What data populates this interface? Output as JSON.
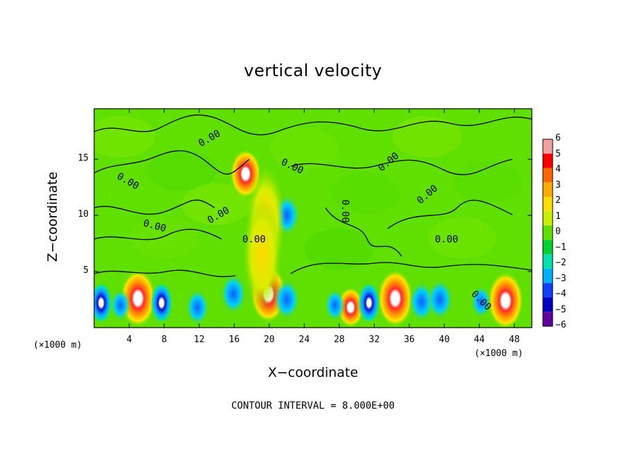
{
  "chart_data": {
    "type": "heatmap",
    "title": "vertical velocity",
    "xlabel": "X−coordinate",
    "ylabel": "Z−coordinate",
    "x_unit": "(×1000 m)",
    "y_unit": "(×1000 m)",
    "xlim": [
      0,
      50
    ],
    "ylim": [
      0,
      19.5
    ],
    "x_ticks": [
      4,
      8,
      12,
      16,
      20,
      24,
      28,
      32,
      36,
      40,
      44,
      48
    ],
    "y_ticks": [
      5,
      10,
      15
    ],
    "colorbar": {
      "ticks": [
        "6",
        "5",
        "4",
        "3",
        "2",
        "1",
        "0",
        "−1",
        "−2",
        "−3",
        "−4",
        "−5",
        "−6"
      ],
      "colors": [
        "#f4a0a0",
        "#ff0000",
        "#ff6600",
        "#ffaa00",
        "#ffdd00",
        "#c8f000",
        "#60e000",
        "#00d030",
        "#00e0b0",
        "#00b0ff",
        "#1040ff",
        "#0000c0",
        "#6000a0"
      ]
    },
    "contour_labels": [
      "0.00",
      "0.00",
      "0.00",
      "0.00",
      "0.00",
      "0.00",
      "0.00",
      "0.00",
      "0.00",
      "0.00",
      "0.00"
    ],
    "contour_interval": "CONTOUR INTERVAL = 8.000E+00",
    "features": [
      {
        "kind": "updraft",
        "x": 5.0,
        "z": 2.6,
        "w": 6
      },
      {
        "kind": "updraft",
        "x": 19.9,
        "z": 3.0,
        "w": 6
      },
      {
        "kind": "updraft",
        "x": 34.4,
        "z": 2.6,
        "w": 6
      },
      {
        "kind": "updraft",
        "x": 47.0,
        "z": 2.4,
        "w": 6
      },
      {
        "kind": "updraft",
        "x": 17.3,
        "z": 13.7,
        "w": 5
      },
      {
        "kind": "updraft",
        "x": 29.3,
        "z": 1.8,
        "w": 4
      },
      {
        "kind": "downdraft",
        "x": 0.8,
        "z": 2.2,
        "w": -6
      },
      {
        "kind": "downdraft",
        "x": 7.7,
        "z": 2.2,
        "w": -5
      },
      {
        "kind": "downdraft",
        "x": 31.4,
        "z": 2.2,
        "w": -5
      },
      {
        "kind": "downdraft",
        "x": 3.0,
        "z": 2.0,
        "w": -2
      },
      {
        "kind": "downdraft",
        "x": 11.8,
        "z": 1.8,
        "w": -3
      },
      {
        "kind": "downdraft",
        "x": 15.9,
        "z": 3.0,
        "w": -4
      },
      {
        "kind": "downdraft",
        "x": 22.0,
        "z": 2.5,
        "w": -4
      },
      {
        "kind": "downdraft",
        "x": 27.5,
        "z": 2.0,
        "w": -2
      },
      {
        "kind": "downdraft",
        "x": 37.4,
        "z": 2.3,
        "w": -4
      },
      {
        "kind": "downdraft",
        "x": 39.5,
        "z": 2.5,
        "w": -4
      },
      {
        "kind": "downdraft",
        "x": 44.2,
        "z": 2.3,
        "w": -2
      },
      {
        "kind": "downdraft",
        "x": 22.0,
        "z": 10.0,
        "w": -4
      },
      {
        "kind": "plume",
        "x": 19.6,
        "z": 9.5,
        "w": 2
      },
      {
        "kind": "plume",
        "x": 19.2,
        "z": 6.5,
        "w": 2
      }
    ]
  }
}
